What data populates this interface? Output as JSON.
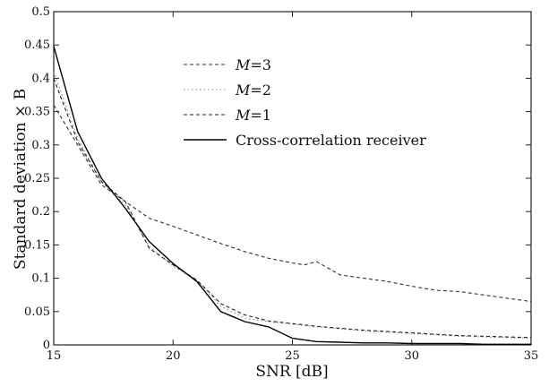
{
  "chart_data": {
    "type": "line",
    "title": "",
    "xlabel": "SNR [dB]",
    "ylabel": "Standard deviation × B",
    "xlim": [
      15,
      35
    ],
    "ylim": [
      0,
      0.5
    ],
    "xticks": [
      "15",
      "20",
      "25",
      "30",
      "35"
    ],
    "yticks": [
      "0",
      "0.05",
      "0.1",
      "0.15",
      "0.2",
      "0.25",
      "0.3",
      "0.35",
      "0.4",
      "0.45",
      "0.5"
    ],
    "grid": false,
    "legend_position": "upper-center",
    "series": [
      {
        "name": "M=3",
        "legend_parts": [
          "M",
          "=3"
        ],
        "style": "dashed",
        "color": "#333333",
        "x": [
          15,
          16,
          17,
          18,
          19,
          20,
          21,
          22,
          23,
          24,
          25,
          25.5,
          26,
          26.5,
          27,
          28,
          29,
          30,
          31,
          32,
          33,
          34,
          35
        ],
        "y": [
          0.36,
          0.3,
          0.24,
          0.215,
          0.19,
          0.178,
          0.165,
          0.152,
          0.14,
          0.13,
          0.123,
          0.12,
          0.125,
          0.115,
          0.105,
          0.1,
          0.095,
          0.088,
          0.082,
          0.08,
          0.075,
          0.07,
          0.065
        ]
      },
      {
        "name": "M=2",
        "legend_parts": [
          "M",
          "=2"
        ],
        "style": "dotted",
        "color": "#888888",
        "x": [
          15,
          16,
          17,
          18,
          19,
          20,
          21,
          22,
          23,
          24,
          25,
          26,
          27,
          28,
          29,
          30,
          31,
          32,
          33,
          34,
          35
        ],
        "y": [
          0.41,
          0.31,
          0.245,
          0.21,
          0.148,
          0.118,
          0.097,
          0.058,
          0.04,
          0.035,
          0.031,
          0.027,
          0.024,
          0.021,
          0.019,
          0.017,
          0.015,
          0.013,
          0.012,
          0.011,
          0.01
        ]
      },
      {
        "name": "M=1",
        "legend_parts": [
          "M",
          "=1"
        ],
        "style": "dashed",
        "color": "#222222",
        "x": [
          15,
          16,
          17,
          18,
          19,
          20,
          21,
          22,
          23,
          24,
          25,
          26,
          27,
          28,
          29,
          30,
          31,
          32,
          33,
          34,
          35
        ],
        "y": [
          0.4,
          0.305,
          0.245,
          0.215,
          0.145,
          0.12,
          0.097,
          0.062,
          0.045,
          0.036,
          0.032,
          0.028,
          0.025,
          0.022,
          0.02,
          0.018,
          0.016,
          0.014,
          0.013,
          0.012,
          0.011
        ]
      },
      {
        "name": "Cross-correlation receiver",
        "legend_parts": [
          "Cross-correlation receiver",
          ""
        ],
        "style": "solid",
        "color": "#000000",
        "x": [
          15,
          16,
          17,
          18,
          19,
          20,
          21,
          22,
          23,
          24,
          25,
          26,
          27,
          28,
          29,
          30,
          31,
          32,
          33,
          34,
          35
        ],
        "y": [
          0.448,
          0.32,
          0.25,
          0.205,
          0.155,
          0.122,
          0.095,
          0.05,
          0.035,
          0.027,
          0.01,
          0.005,
          0.004,
          0.003,
          0.003,
          0.002,
          0.002,
          0.002,
          0.001,
          0.001,
          0.001
        ]
      }
    ]
  }
}
